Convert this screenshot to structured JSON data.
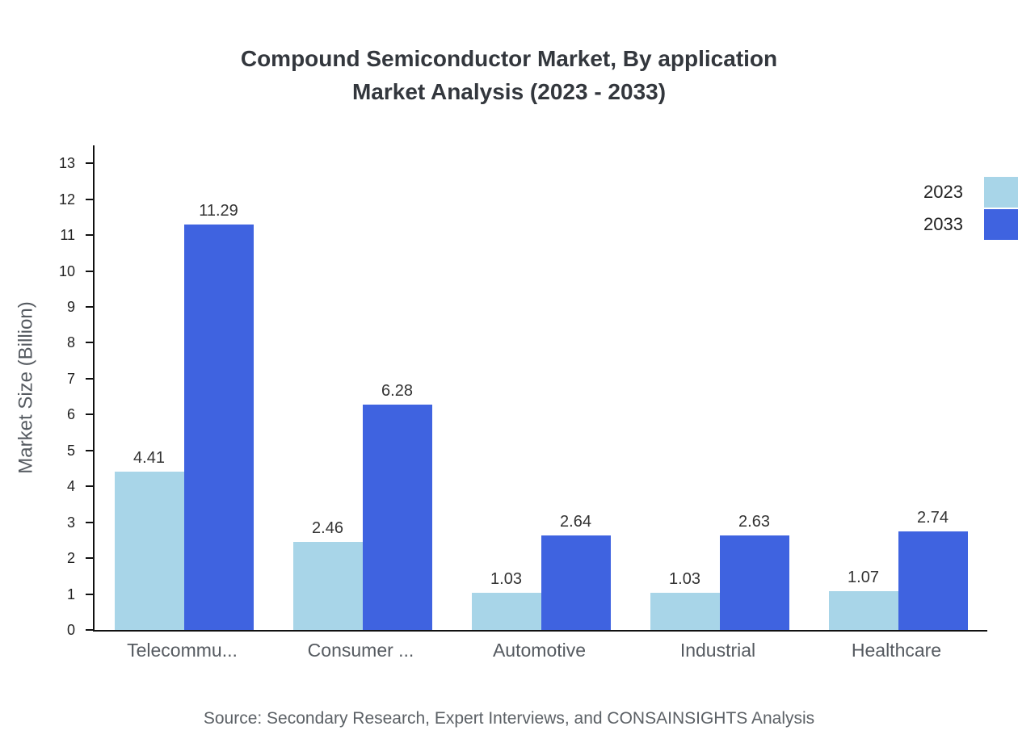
{
  "title": {
    "line1": "Compound Semiconductor Market, By application",
    "line2": "Market Analysis (2023 - 2033)"
  },
  "source": "Source: Secondary Research, Expert Interviews, and CONSAINSIGHTS Analysis",
  "colors": {
    "series_2023": "#a8d5e8",
    "series_2033": "#3f63e0",
    "axis": "#111111",
    "title_text": "#33373d",
    "muted_text": "#555a60"
  },
  "legend": {
    "position": "top-right",
    "items": [
      {
        "label": "2023",
        "color": "#a8d5e8"
      },
      {
        "label": "2033",
        "color": "#3f63e0"
      }
    ]
  },
  "chart_data": {
    "type": "bar",
    "title": "Compound Semiconductor Market, By application Market Analysis (2023 - 2033)",
    "xlabel": "",
    "ylabel": "Market Size (Billion)",
    "categories": [
      "Telecommu...",
      "Consumer ...",
      "Automotive",
      "Industrial",
      "Healthcare"
    ],
    "series": [
      {
        "name": "2023",
        "color": "#a8d5e8",
        "values": [
          4.41,
          2.46,
          1.03,
          1.03,
          1.07
        ]
      },
      {
        "name": "2033",
        "color": "#3f63e0",
        "values": [
          11.29,
          6.28,
          2.64,
          2.63,
          2.74
        ]
      }
    ],
    "value_labels": {
      "2023": [
        "4.41",
        "2.46",
        "1.03",
        "1.03",
        "1.07"
      ],
      "2033": [
        "11.29",
        "6.28",
        "2.64",
        "2.63",
        "2.74"
      ]
    },
    "ylim": [
      0,
      13.5
    ],
    "yticks": [
      0,
      1,
      2,
      3,
      4,
      5,
      6,
      7,
      8,
      9,
      10,
      11,
      12,
      13
    ],
    "grid": false,
    "legend_position": "top-right"
  }
}
